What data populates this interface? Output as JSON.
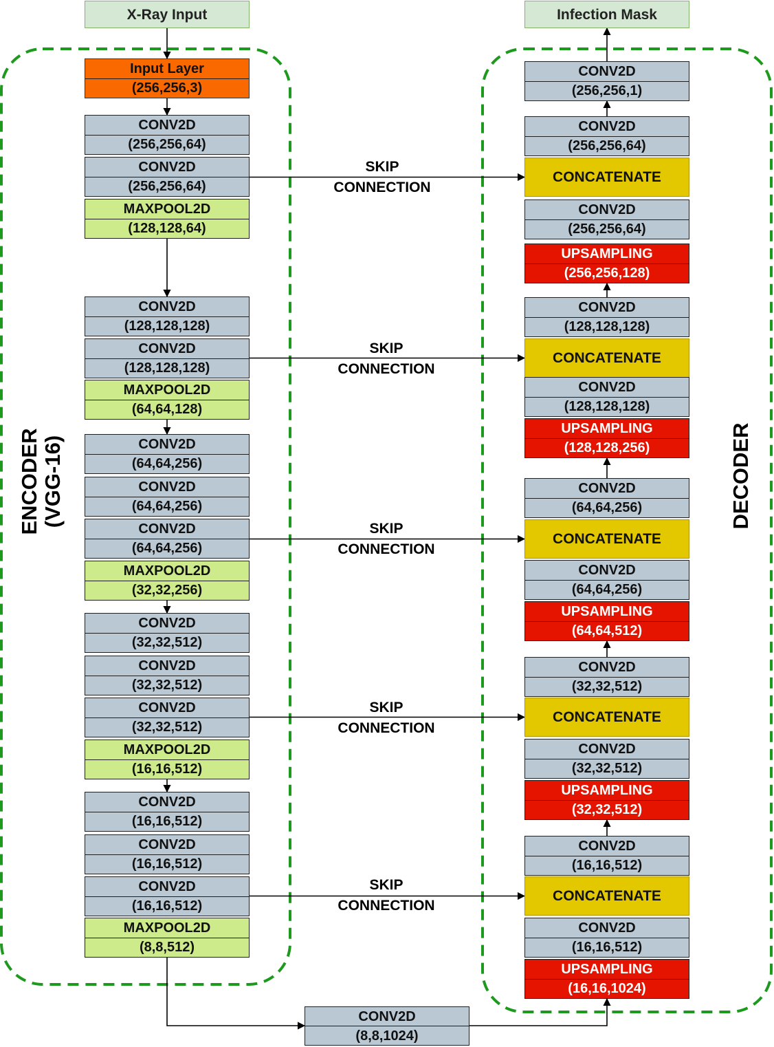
{
  "input": {
    "label": "X-Ray Input"
  },
  "output": {
    "label": "Infection Mask"
  },
  "encoder": {
    "label_line1": "ENCODER",
    "label_line2": "(VGG-16)",
    "layers": [
      {
        "kind": "input",
        "name": "Input Layer",
        "shape": "(256,256,3)"
      },
      {
        "kind": "conv",
        "name": "CONV2D",
        "shape": "(256,256,64)"
      },
      {
        "kind": "conv",
        "name": "CONV2D",
        "shape": "(256,256,64)"
      },
      {
        "kind": "pool",
        "name": "MAXPOOL2D",
        "shape": "(128,128,64)"
      },
      {
        "kind": "conv",
        "name": "CONV2D",
        "shape": "(128,128,128)"
      },
      {
        "kind": "conv",
        "name": "CONV2D",
        "shape": "(128,128,128)"
      },
      {
        "kind": "pool",
        "name": "MAXPOOL2D",
        "shape": "(64,64,128)"
      },
      {
        "kind": "conv",
        "name": "CONV2D",
        "shape": "(64,64,256)"
      },
      {
        "kind": "conv",
        "name": "CONV2D",
        "shape": "(64,64,256)"
      },
      {
        "kind": "conv",
        "name": "CONV2D",
        "shape": "(64,64,256)"
      },
      {
        "kind": "pool",
        "name": "MAXPOOL2D",
        "shape": "(32,32,256)"
      },
      {
        "kind": "conv",
        "name": "CONV2D",
        "shape": "(32,32,512)"
      },
      {
        "kind": "conv",
        "name": "CONV2D",
        "shape": "(32,32,512)"
      },
      {
        "kind": "conv",
        "name": "CONV2D",
        "shape": "(32,32,512)"
      },
      {
        "kind": "pool",
        "name": "MAXPOOL2D",
        "shape": "(16,16,512)"
      },
      {
        "kind": "conv",
        "name": "CONV2D",
        "shape": "(16,16,512)"
      },
      {
        "kind": "conv",
        "name": "CONV2D",
        "shape": "(16,16,512)"
      },
      {
        "kind": "conv",
        "name": "CONV2D",
        "shape": "(16,16,512)"
      },
      {
        "kind": "pool",
        "name": "MAXPOOL2D",
        "shape": "(8,8,512)"
      }
    ]
  },
  "bottleneck": {
    "name": "CONV2D",
    "shape": "(8,8,1024)"
  },
  "decoder": {
    "label": "DECODER",
    "layers": [
      {
        "kind": "conv",
        "name": "CONV2D",
        "shape": "(256,256,1)"
      },
      {
        "kind": "conv",
        "name": "CONV2D",
        "shape": "(256,256,64)"
      },
      {
        "kind": "cat",
        "name": "CONCATENATE"
      },
      {
        "kind": "conv",
        "name": "CONV2D",
        "shape": "(256,256,64)"
      },
      {
        "kind": "up",
        "name": "UPSAMPLING",
        "shape": "(256,256,128)"
      },
      {
        "kind": "conv",
        "name": "CONV2D",
        "shape": "(128,128,128)"
      },
      {
        "kind": "cat",
        "name": "CONCATENATE"
      },
      {
        "kind": "conv",
        "name": "CONV2D",
        "shape": "(128,128,128)"
      },
      {
        "kind": "up",
        "name": "UPSAMPLING",
        "shape": "(128,128,256)"
      },
      {
        "kind": "conv",
        "name": "CONV2D",
        "shape": "(64,64,256)"
      },
      {
        "kind": "cat",
        "name": "CONCATENATE"
      },
      {
        "kind": "conv",
        "name": "CONV2D",
        "shape": "(64,64,256)"
      },
      {
        "kind": "up",
        "name": "UPSAMPLING",
        "shape": "(64,64,512)"
      },
      {
        "kind": "conv",
        "name": "CONV2D",
        "shape": "(32,32,512)"
      },
      {
        "kind": "cat",
        "name": "CONCATENATE"
      },
      {
        "kind": "conv",
        "name": "CONV2D",
        "shape": "(32,32,512)"
      },
      {
        "kind": "up",
        "name": "UPSAMPLING",
        "shape": "(32,32,512)"
      },
      {
        "kind": "conv",
        "name": "CONV2D",
        "shape": "(16,16,512)"
      },
      {
        "kind": "cat",
        "name": "CONCATENATE"
      },
      {
        "kind": "conv",
        "name": "CONV2D",
        "shape": "(16,16,512)"
      },
      {
        "kind": "up",
        "name": "UPSAMPLING",
        "shape": "(16,16,1024)"
      }
    ]
  },
  "skip_connections": [
    {
      "line1": "SKIP",
      "line2": "CONNECTION"
    },
    {
      "line1": "SKIP",
      "line2": "CONNECTION"
    },
    {
      "line1": "SKIP",
      "line2": "CONNECTION"
    },
    {
      "line1": "SKIP",
      "line2": "CONNECTION"
    },
    {
      "line1": "SKIP",
      "line2": "CONNECTION"
    }
  ],
  "colors": {
    "conv": "#bac8d3",
    "pool": "#cdeb8b",
    "input": "#fa6800",
    "upsampling": "#e51400",
    "concatenate": "#e3c800",
    "terminal": "#d5e8d4",
    "dashed_border": "#1d9a1d"
  }
}
